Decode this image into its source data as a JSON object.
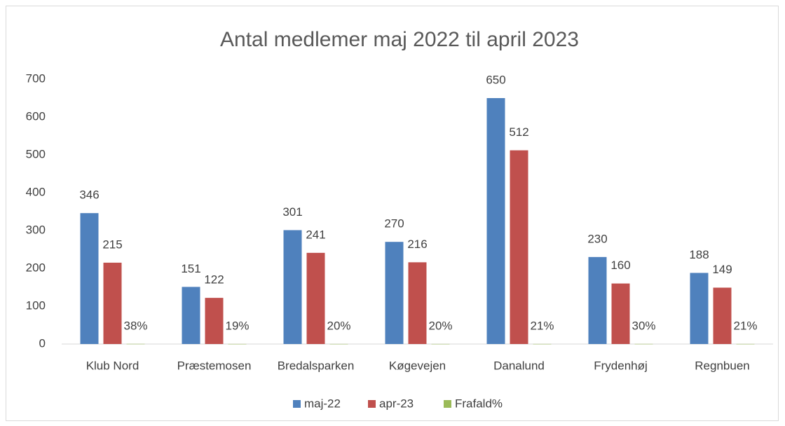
{
  "chart_data": {
    "type": "bar",
    "title": "Antal medlemer maj 2022 til april 2023",
    "categories": [
      "Klub Nord",
      "Præstemosen",
      "Bredalsparken",
      "Køgevejen",
      "Danalund",
      "Frydenhøj",
      "Regnbuen"
    ],
    "series": [
      {
        "name": "maj-22",
        "color": "#4f81bd",
        "values": [
          346,
          151,
          301,
          270,
          650,
          230,
          188
        ]
      },
      {
        "name": "apr-23",
        "color": "#c0504d",
        "values": [
          215,
          122,
          241,
          216,
          512,
          160,
          149
        ]
      },
      {
        "name": "Frafald%",
        "color": "#9bbb59",
        "values": [
          0.38,
          0.19,
          0.2,
          0.2,
          0.21,
          0.3,
          0.21
        ],
        "value_labels": [
          "38%",
          "19%",
          "20%",
          "20%",
          "21%",
          "30%",
          "21%"
        ]
      }
    ],
    "ylim": [
      0,
      700
    ],
    "yticks": [
      0,
      100,
      200,
      300,
      400,
      500,
      600,
      700
    ],
    "grid": false,
    "legend": "bottom"
  }
}
